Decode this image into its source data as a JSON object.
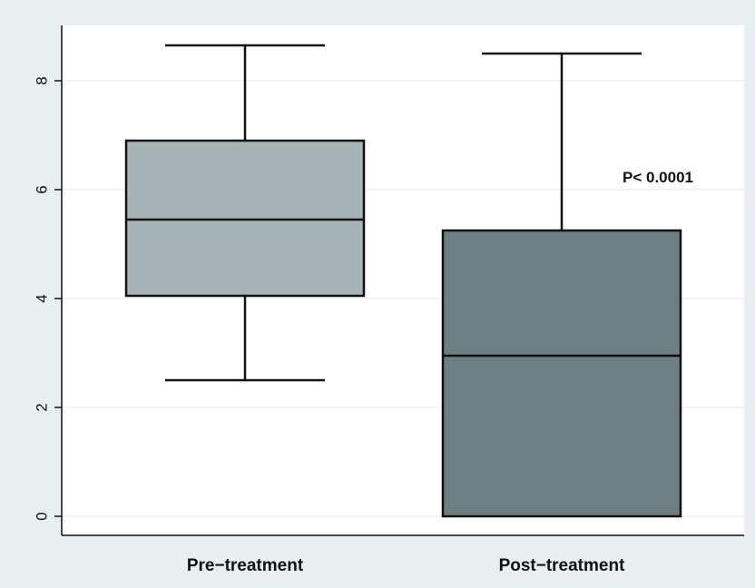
{
  "chart_data": {
    "type": "box",
    "title": "",
    "xlabel": "",
    "ylabel": "",
    "ylim": [
      0,
      9
    ],
    "yticks": [
      0,
      2,
      4,
      6,
      8
    ],
    "grid": true,
    "legend": "none",
    "colors": {
      "outer_background": "#e9eef0",
      "plot_background": "#ffffff",
      "gridline": "#e6edf0",
      "pre_treatment_box": "#a5b4b7",
      "post_treatment_box": "#6e7f83",
      "stroke": "#111111"
    },
    "categories": [
      "Pre−treatment",
      "Post−treatment"
    ],
    "boxes": [
      {
        "category": "Pre−treatment",
        "whisker_low": 2.5,
        "q1": 4.05,
        "median": 5.45,
        "q3": 6.9,
        "whisker_high": 8.65
      },
      {
        "category": "Post−treatment",
        "whisker_low": 0,
        "q1": 0,
        "median": 2.95,
        "q3": 5.25,
        "whisker_high": 8.5
      }
    ],
    "annotations": [
      {
        "text": "P< 0.0001"
      }
    ]
  }
}
